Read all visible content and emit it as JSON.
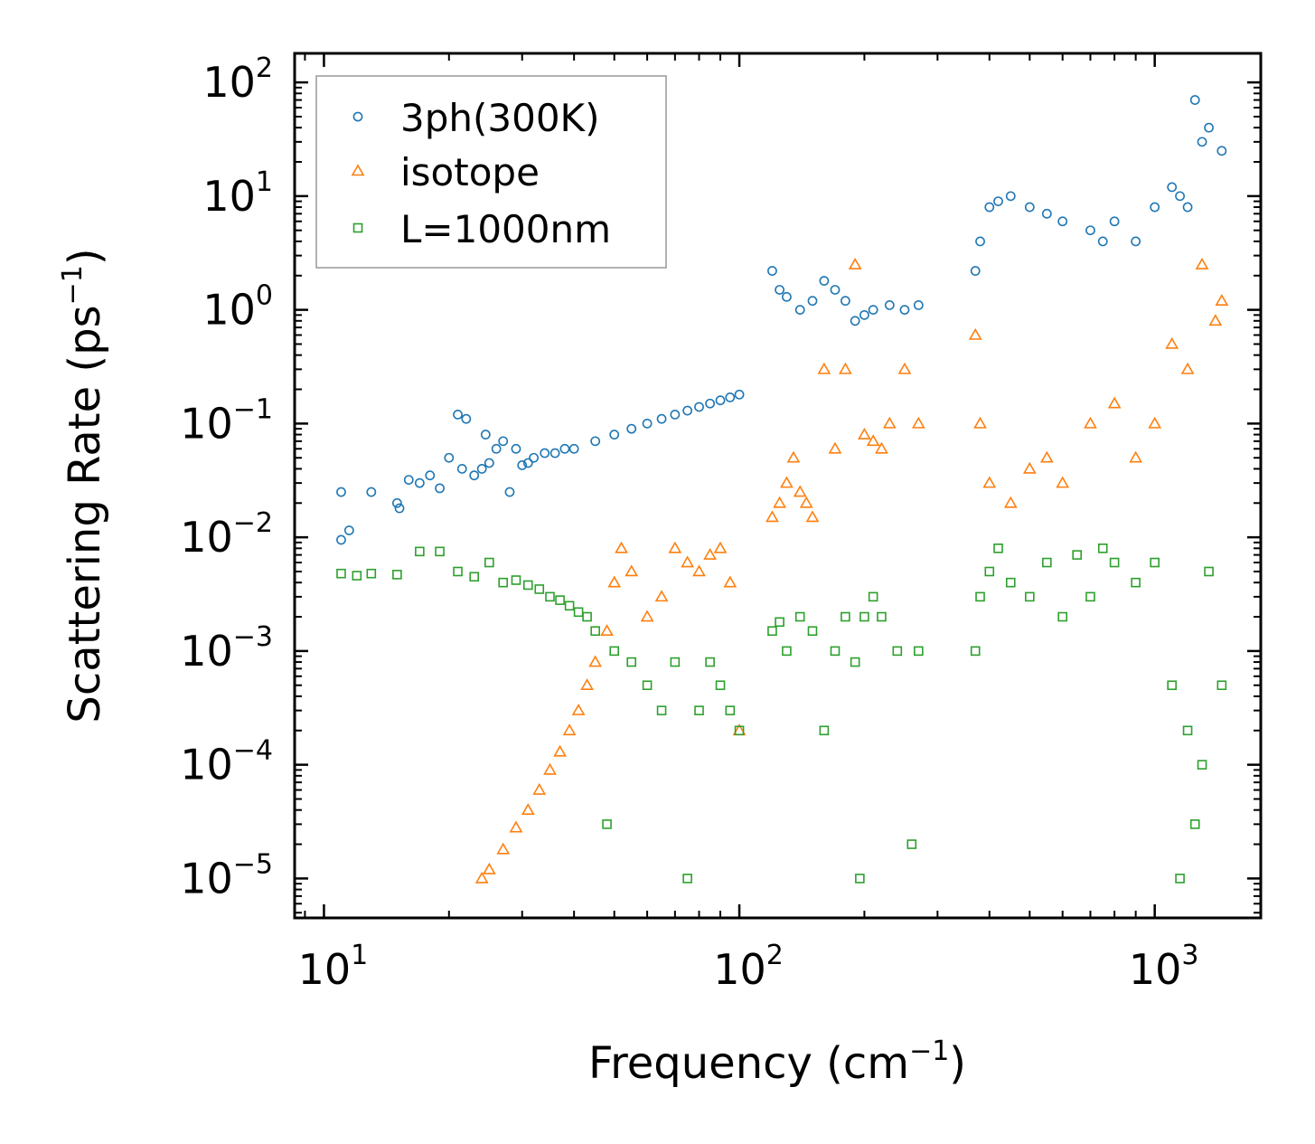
{
  "chart_data": {
    "type": "scatter",
    "title": "",
    "xlabel": "Frequency (cm",
    "xlabel_sup": "−1",
    "xlabel_end": ")",
    "ylabel": "Scattering Rate (ps",
    "ylabel_sup": "−1",
    "ylabel_end": ")",
    "xscale": "log",
    "yscale": "log",
    "xlim": [
      8.5,
      1800
    ],
    "ylim": [
      4.5e-06,
      180
    ],
    "x_ticks": [
      {
        "value": 10,
        "base": "10",
        "exp": "1"
      },
      {
        "value": 100,
        "base": "10",
        "exp": "2"
      },
      {
        "value": 1000,
        "base": "10",
        "exp": "3"
      }
    ],
    "y_ticks": [
      {
        "value": 1e-05,
        "base": "10",
        "exp": "−5"
      },
      {
        "value": 0.0001,
        "base": "10",
        "exp": "−4"
      },
      {
        "value": 0.001,
        "base": "10",
        "exp": "−3"
      },
      {
        "value": 0.01,
        "base": "10",
        "exp": "−2"
      },
      {
        "value": 0.1,
        "base": "10",
        "exp": "−1"
      },
      {
        "value": 1,
        "base": "10",
        "exp": "0"
      },
      {
        "value": 10,
        "base": "10",
        "exp": "1"
      },
      {
        "value": 100,
        "base": "10",
        "exp": "2"
      }
    ],
    "legend_position": "top-left",
    "series": [
      {
        "name": "3ph(300K)",
        "marker": "circle",
        "color": "#1f77b4",
        "x": [
          11,
          11,
          11.5,
          13,
          15,
          15.2,
          16,
          17,
          18,
          19,
          20,
          21,
          21.5,
          22,
          23,
          24,
          24.5,
          25,
          26,
          27,
          28,
          29,
          30,
          31,
          32,
          34,
          36,
          38,
          40,
          45,
          50,
          55,
          60,
          65,
          70,
          75,
          80,
          85,
          90,
          95,
          100,
          120,
          125,
          130,
          140,
          150,
          160,
          170,
          180,
          190,
          200,
          210,
          230,
          250,
          270,
          370,
          380,
          400,
          420,
          450,
          500,
          550,
          600,
          700,
          750,
          800,
          900,
          1000,
          1100,
          1150,
          1200,
          1250,
          1300,
          1350,
          1450
        ],
        "y": [
          0.025,
          0.0095,
          0.0115,
          0.025,
          0.02,
          0.018,
          0.032,
          0.03,
          0.035,
          0.027,
          0.05,
          0.12,
          0.04,
          0.11,
          0.035,
          0.04,
          0.08,
          0.045,
          0.06,
          0.07,
          0.025,
          0.06,
          0.043,
          0.045,
          0.05,
          0.055,
          0.055,
          0.06,
          0.06,
          0.07,
          0.08,
          0.09,
          0.1,
          0.11,
          0.12,
          0.13,
          0.14,
          0.15,
          0.16,
          0.17,
          0.18,
          2.2,
          1.5,
          1.3,
          1.0,
          1.2,
          1.8,
          1.5,
          1.2,
          0.8,
          0.9,
          1.0,
          1.1,
          1.0,
          1.1,
          2.2,
          4.0,
          8.0,
          9.0,
          10.0,
          8.0,
          7.0,
          6.0,
          5.0,
          4.0,
          6.0,
          4.0,
          8.0,
          12.0,
          10.0,
          8.0,
          70.0,
          30.0,
          40.0,
          25.0
        ]
      },
      {
        "name": "isotope",
        "marker": "triangle",
        "color": "#ff7f0e",
        "x": [
          24,
          25,
          27,
          29,
          31,
          33,
          35,
          37,
          39,
          41,
          43,
          45,
          48,
          50,
          52,
          55,
          60,
          65,
          70,
          75,
          80,
          85,
          90,
          95,
          100,
          120,
          125,
          130,
          135,
          140,
          145,
          150,
          160,
          170,
          180,
          190,
          200,
          210,
          220,
          230,
          250,
          270,
          370,
          380,
          400,
          450,
          500,
          550,
          600,
          700,
          800,
          900,
          1000,
          1100,
          1200,
          1300,
          1400,
          1450
        ],
        "y": [
          1e-05,
          1.2e-05,
          1.8e-05,
          2.8e-05,
          4e-05,
          6e-05,
          9e-05,
          0.00013,
          0.0002,
          0.0003,
          0.0005,
          0.0008,
          0.0015,
          0.004,
          0.008,
          0.005,
          0.002,
          0.003,
          0.008,
          0.006,
          0.005,
          0.007,
          0.008,
          0.004,
          0.0002,
          0.015,
          0.02,
          0.03,
          0.05,
          0.025,
          0.02,
          0.015,
          0.3,
          0.06,
          0.3,
          2.5,
          0.08,
          0.07,
          0.06,
          0.1,
          0.3,
          0.1,
          0.6,
          0.1,
          0.03,
          0.02,
          0.04,
          0.05,
          0.03,
          0.1,
          0.15,
          0.05,
          0.1,
          0.5,
          0.3,
          2.5,
          0.8,
          1.2
        ]
      },
      {
        "name": "L=1000nm",
        "marker": "square",
        "color": "#2ca02c",
        "x": [
          11,
          12,
          13,
          15,
          17,
          19,
          21,
          23,
          25,
          27,
          29,
          31,
          33,
          35,
          37,
          39,
          41,
          43,
          45,
          48,
          50,
          55,
          60,
          65,
          70,
          75,
          80,
          85,
          90,
          95,
          100,
          120,
          125,
          130,
          140,
          150,
          160,
          170,
          180,
          190,
          195,
          200,
          210,
          220,
          240,
          260,
          270,
          370,
          380,
          400,
          420,
          450,
          500,
          550,
          600,
          650,
          700,
          750,
          800,
          900,
          1000,
          1100,
          1150,
          1200,
          1250,
          1300,
          1350,
          1450
        ],
        "y": [
          0.0048,
          0.0046,
          0.0048,
          0.0047,
          0.0075,
          0.0075,
          0.005,
          0.0045,
          0.006,
          0.004,
          0.0042,
          0.0038,
          0.0035,
          0.003,
          0.0028,
          0.0025,
          0.0022,
          0.002,
          0.0015,
          3e-05,
          0.001,
          0.0008,
          0.0005,
          0.0003,
          0.0008,
          1e-05,
          0.0003,
          0.0008,
          0.0005,
          0.0003,
          0.0002,
          0.0015,
          0.0018,
          0.001,
          0.002,
          0.0015,
          0.0002,
          0.001,
          0.002,
          0.0008,
          1e-05,
          0.002,
          0.003,
          0.002,
          0.001,
          2e-05,
          0.001,
          0.001,
          0.003,
          0.005,
          0.008,
          0.004,
          0.003,
          0.006,
          0.002,
          0.007,
          0.003,
          0.008,
          0.006,
          0.004,
          0.006,
          0.0005,
          1e-05,
          0.0002,
          3e-05,
          0.0001,
          0.005,
          0.0005
        ]
      }
    ]
  }
}
